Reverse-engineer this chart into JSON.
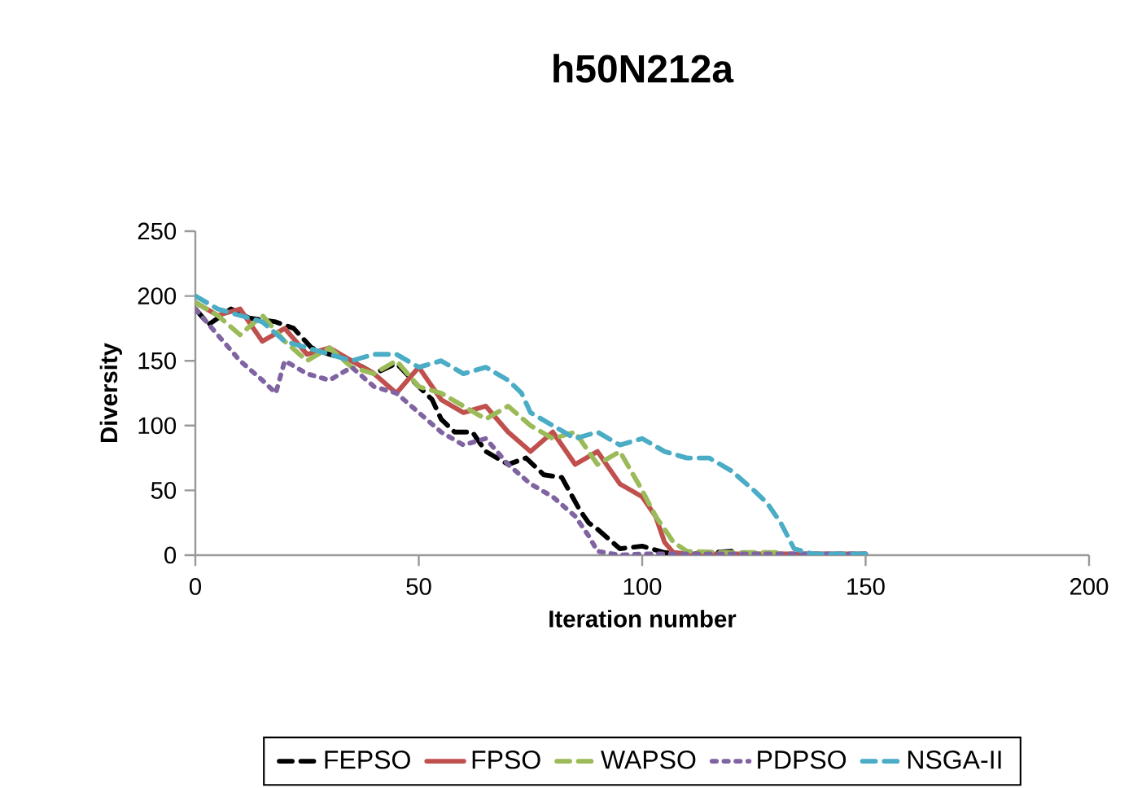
{
  "chart_data": {
    "type": "line",
    "title": "h50N212a",
    "xlabel": "Iteration number",
    "ylabel": "Diversity",
    "xlim": [
      0,
      200
    ],
    "ylim": [
      0,
      250
    ],
    "xticks": [
      0,
      50,
      100,
      150,
      200
    ],
    "yticks": [
      0,
      50,
      100,
      150,
      200,
      250
    ],
    "grid": false,
    "legend": "bottom",
    "marker": "none",
    "series": [
      {
        "name": "FEPSO",
        "color": "#000000",
        "line_style": "dashed",
        "x": [
          0,
          3,
          8,
          12,
          18,
          22,
          26,
          30,
          35,
          40,
          45,
          50,
          53,
          55,
          58,
          62,
          65,
          70,
          74,
          78,
          82,
          86,
          88,
          90,
          95,
          100,
          105,
          110,
          120
        ],
        "values": [
          190,
          178,
          190,
          183,
          180,
          175,
          160,
          155,
          150,
          140,
          148,
          130,
          120,
          105,
          95,
          95,
          80,
          70,
          75,
          62,
          60,
          35,
          25,
          20,
          5,
          7,
          2,
          1,
          3
        ]
      },
      {
        "name": "FPSO",
        "color": "#c0504d",
        "line_style": "solid",
        "x": [
          0,
          5,
          10,
          15,
          20,
          25,
          30,
          35,
          40,
          45,
          50,
          55,
          60,
          65,
          70,
          75,
          80,
          85,
          90,
          95,
          100,
          103,
          105,
          107,
          110,
          120,
          130,
          150
        ],
        "values": [
          195,
          185,
          190,
          165,
          175,
          155,
          160,
          150,
          140,
          125,
          145,
          120,
          110,
          115,
          95,
          80,
          95,
          70,
          80,
          55,
          45,
          30,
          10,
          2,
          1,
          1,
          1,
          1
        ]
      },
      {
        "name": "WAPSO",
        "color": "#9bbb59",
        "line_style": "dashed",
        "x": [
          0,
          5,
          10,
          15,
          20,
          25,
          30,
          35,
          40,
          45,
          50,
          55,
          60,
          65,
          70,
          75,
          80,
          85,
          90,
          95,
          100,
          103,
          107,
          110,
          120,
          130
        ],
        "values": [
          195,
          185,
          170,
          185,
          165,
          150,
          160,
          145,
          140,
          150,
          130,
          125,
          115,
          105,
          115,
          100,
          90,
          95,
          70,
          80,
          50,
          30,
          10,
          3,
          2,
          2
        ]
      },
      {
        "name": "PDPSO",
        "color": "#8064a2",
        "line_style": "dotted",
        "x": [
          0,
          5,
          10,
          15,
          18,
          20,
          25,
          30,
          35,
          40,
          45,
          50,
          55,
          60,
          65,
          70,
          75,
          80,
          85,
          88,
          90,
          95,
          100,
          150
        ],
        "values": [
          190,
          170,
          150,
          135,
          125,
          150,
          140,
          135,
          145,
          130,
          125,
          110,
          95,
          85,
          90,
          70,
          55,
          45,
          30,
          15,
          3,
          0,
          1,
          1
        ]
      },
      {
        "name": "NSGA-II",
        "color": "#4bacc6",
        "line_style": "dashed",
        "x": [
          0,
          5,
          10,
          15,
          20,
          25,
          30,
          35,
          40,
          45,
          50,
          55,
          60,
          65,
          70,
          73,
          75,
          80,
          85,
          90,
          95,
          100,
          105,
          110,
          115,
          120,
          125,
          128,
          131,
          134,
          138,
          150
        ],
        "values": [
          200,
          190,
          185,
          180,
          165,
          160,
          155,
          150,
          155,
          155,
          145,
          150,
          140,
          145,
          135,
          125,
          110,
          100,
          90,
          95,
          85,
          90,
          80,
          75,
          75,
          65,
          50,
          40,
          25,
          5,
          1,
          1
        ]
      }
    ]
  }
}
